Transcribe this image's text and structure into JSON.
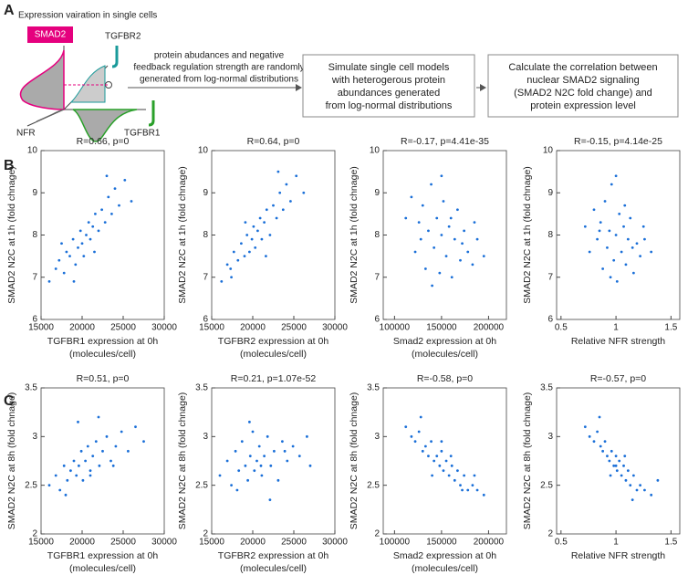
{
  "panel_labels": [
    "A",
    "B",
    "C"
  ],
  "diagram": {
    "caption": "Expression vairation in single cells",
    "smad2": "SMAD2",
    "tgfbr2": "TGFBR2",
    "nfr": "NFR",
    "tgfbr1": "TGFBR1",
    "note": [
      "protein abudances and negative",
      "feedback regulation strength are randomly",
      "generated from log-normal distributions"
    ],
    "box1": [
      "Simulate single cell models",
      "with  heterogerous protein",
      "abundances generated",
      "from log-normal distributions"
    ],
    "box2": [
      "Calculate the correlation between",
      "nuclear SMAD2 signaling",
      "(SMAD2 N2C fold change) and",
      "protein expression level"
    ]
  },
  "chart_data": [
    {
      "type": "scatter",
      "title": "R=0.66, p=0",
      "xlabel": [
        "TGFBR1 expression at 0h",
        "(molecules/cell)"
      ],
      "ylabel": "SMAD2 N2C at 1h (fold chnage)",
      "color": "#1a6fd8",
      "x": [
        16000,
        16800,
        17200,
        17800,
        18100,
        18500,
        18900,
        19200,
        19500,
        19800,
        20000,
        20200,
        20500,
        20800,
        21000,
        21300,
        21600,
        22000,
        22400,
        22800,
        23200,
        23600,
        24000,
        24500,
        25200,
        26000,
        17500,
        19000,
        21500,
        23000
      ],
      "y": [
        6.9,
        7.2,
        7.4,
        7.1,
        7.6,
        7.5,
        7.9,
        7.3,
        7.7,
        8.1,
        7.8,
        7.5,
        8.0,
        8.3,
        7.9,
        8.2,
        8.5,
        8.1,
        8.6,
        8.3,
        8.9,
        8.5,
        9.1,
        8.7,
        9.3,
        8.8,
        7.8,
        6.9,
        7.6,
        9.4
      ],
      "xlim": [
        15000,
        30000
      ],
      "xticks": [
        15000,
        20000,
        25000,
        30000
      ],
      "ylim": [
        6,
        10
      ],
      "yticks": [
        6,
        7,
        8,
        9,
        10
      ]
    },
    {
      "type": "scatter",
      "title": "R=0.64, p=0",
      "xlabel": [
        "TGFBR2 expression at 0h",
        "(molecules/cell)"
      ],
      "ylabel": "SMAD2 N2C at 1h (fold chnage)",
      "color": "#1a6fd8",
      "x": [
        16200,
        16900,
        17300,
        17700,
        18200,
        18600,
        19000,
        19300,
        19600,
        19900,
        20100,
        20300,
        20600,
        20900,
        21100,
        21400,
        21700,
        22100,
        22500,
        22900,
        23300,
        23700,
        24100,
        24600,
        25300,
        26200,
        17400,
        19100,
        21600,
        23100
      ],
      "y": [
        6.9,
        7.3,
        7.2,
        7.6,
        7.4,
        7.8,
        7.5,
        8.0,
        7.6,
        7.9,
        8.2,
        7.7,
        8.1,
        8.4,
        7.9,
        8.3,
        8.6,
        8.0,
        8.7,
        8.4,
        9.0,
        8.6,
        9.2,
        8.8,
        9.4,
        9.0,
        7.0,
        8.3,
        7.5,
        9.5
      ],
      "xlim": [
        15000,
        30000
      ],
      "xticks": [
        15000,
        20000,
        25000,
        30000
      ],
      "ylim": [
        6,
        10
      ],
      "yticks": [
        6,
        7,
        8,
        9,
        10
      ]
    },
    {
      "type": "scatter",
      "title": "R=-0.17, p=4.41e-35",
      "xlabel": [
        "Smad2 expression at 0h",
        "(molecules/cell)"
      ],
      "ylabel": "SMAD2 N2C at 1h (fold chnage)",
      "color": "#1a6fd8",
      "x": [
        112000,
        118000,
        122000,
        126000,
        130000,
        133000,
        136000,
        139000,
        142000,
        145000,
        148000,
        150000,
        152000,
        155000,
        158000,
        161000,
        164000,
        167000,
        170000,
        174000,
        178000,
        183000,
        188000,
        195000,
        128000,
        140000,
        150000,
        160000,
        172000,
        185000
      ],
      "y": [
        8.4,
        8.9,
        7.6,
        8.3,
        8.7,
        7.2,
        8.1,
        9.2,
        7.7,
        8.4,
        7.1,
        8.0,
        8.8,
        7.5,
        8.2,
        7.0,
        7.9,
        8.6,
        7.4,
        8.1,
        7.6,
        7.3,
        7.9,
        7.5,
        7.9,
        6.8,
        9.4,
        8.4,
        7.8,
        8.3
      ],
      "xlim": [
        88000,
        219000
      ],
      "xticks": [
        100000,
        150000,
        200000
      ],
      "ylim": [
        6,
        10
      ],
      "yticks": [
        6,
        7,
        8,
        9,
        10
      ]
    },
    {
      "type": "scatter",
      "title": "R=-0.15, p=4.14e-25",
      "xlabel": [
        "Relative NFR strength"
      ],
      "ylabel": "SMAD2 N2C at 1h (fold chnage)",
      "color": "#1a6fd8",
      "x": [
        0.72,
        0.76,
        0.8,
        0.83,
        0.86,
        0.88,
        0.9,
        0.92,
        0.94,
        0.96,
        0.98,
        1.0,
        1.01,
        1.03,
        1.05,
        1.07,
        1.09,
        1.11,
        1.13,
        1.16,
        1.19,
        1.22,
        1.26,
        1.32,
        0.85,
        0.95,
        1.0,
        1.08,
        1.15,
        1.25
      ],
      "y": [
        8.2,
        7.6,
        8.6,
        7.9,
        8.3,
        7.2,
        8.8,
        7.7,
        8.1,
        9.2,
        7.4,
        8.0,
        6.9,
        8.5,
        7.6,
        8.2,
        7.3,
        7.9,
        8.4,
        7.1,
        7.8,
        7.5,
        7.9,
        7.6,
        8.1,
        7.0,
        9.4,
        8.7,
        7.7,
        8.2
      ],
      "xlim": [
        0.46,
        1.58
      ],
      "xticks": [
        0.5,
        1,
        1.5
      ],
      "ylim": [
        6,
        10
      ],
      "yticks": [
        6,
        7,
        8,
        9,
        10
      ]
    },
    {
      "type": "scatter",
      "title": "R=0.51, p=0",
      "xlabel": [
        "TGFBR1 expression at 0h",
        "(molecules/cell)"
      ],
      "ylabel": "SMAD2 N2C at 8h (fold chnage)",
      "color": "#1a6fd8",
      "x": [
        16000,
        16800,
        17300,
        17800,
        18200,
        18600,
        19000,
        19300,
        19600,
        19900,
        20100,
        20400,
        20700,
        21000,
        21300,
        21700,
        22100,
        22500,
        23000,
        23500,
        24100,
        24800,
        25600,
        26500,
        18000,
        19500,
        21000,
        22000,
        23800,
        27500
      ],
      "y": [
        2.5,
        2.6,
        2.45,
        2.7,
        2.55,
        2.65,
        2.75,
        2.6,
        2.7,
        2.85,
        2.55,
        2.75,
        2.9,
        2.65,
        2.8,
        2.95,
        2.7,
        2.85,
        3.0,
        2.75,
        2.9,
        3.05,
        2.85,
        3.1,
        2.4,
        3.15,
        2.6,
        3.2,
        2.7,
        2.95
      ],
      "xlim": [
        15000,
        30000
      ],
      "xticks": [
        15000,
        20000,
        25000,
        30000
      ],
      "ylim": [
        2,
        3.5
      ],
      "yticks": [
        2,
        2.5,
        3,
        3.5
      ]
    },
    {
      "type": "scatter",
      "title": "R=0.21, p=1.07e-52",
      "xlabel": [
        "TGFBR2 expression at 0h",
        "(molecules/cell)"
      ],
      "ylabel": "SMAD2 N2C at 8h (fold chnage)",
      "color": "#1a6fd8",
      "x": [
        16000,
        16900,
        17400,
        17900,
        18300,
        18700,
        19100,
        19400,
        19700,
        20000,
        20200,
        20500,
        20800,
        21100,
        21400,
        21800,
        22200,
        22600,
        23100,
        23600,
        24200,
        24900,
        25700,
        26600,
        18100,
        19600,
        21000,
        22100,
        23900,
        27000
      ],
      "y": [
        2.6,
        2.75,
        2.5,
        2.85,
        2.65,
        2.95,
        2.7,
        2.55,
        2.8,
        3.05,
        2.65,
        2.75,
        2.9,
        2.6,
        2.8,
        3.0,
        2.7,
        2.85,
        2.55,
        2.95,
        2.75,
        2.9,
        2.8,
        3.0,
        2.45,
        3.15,
        2.7,
        2.35,
        2.85,
        2.7
      ],
      "xlim": [
        15000,
        30000
      ],
      "xticks": [
        15000,
        20000,
        25000,
        30000
      ],
      "ylim": [
        2,
        3.5
      ],
      "yticks": [
        2,
        2.5,
        3,
        3.5
      ]
    },
    {
      "type": "scatter",
      "title": "R=-0.58, p=0",
      "xlabel": [
        "Smad2 expression at 0h",
        "(molecules/cell)"
      ],
      "ylabel": "SMAD2 N2C at 8h (fold chnage)",
      "color": "#1a6fd8",
      "x": [
        112000,
        118000,
        122000,
        126000,
        130000,
        133000,
        136000,
        139000,
        142000,
        145000,
        148000,
        150000,
        152000,
        155000,
        158000,
        161000,
        164000,
        167000,
        170000,
        174000,
        178000,
        183000,
        188000,
        195000,
        128000,
        140000,
        150000,
        160000,
        172000,
        185000
      ],
      "y": [
        3.1,
        3.0,
        2.95,
        3.05,
        2.85,
        2.9,
        2.8,
        2.95,
        2.75,
        2.8,
        2.7,
        2.85,
        2.65,
        2.75,
        2.6,
        2.7,
        2.55,
        2.65,
        2.5,
        2.6,
        2.45,
        2.5,
        2.45,
        2.4,
        3.2,
        2.6,
        2.95,
        2.8,
        2.45,
        2.6
      ],
      "xlim": [
        88000,
        219000
      ],
      "xticks": [
        100000,
        150000,
        200000
      ],
      "ylim": [
        2,
        3.5
      ],
      "yticks": [
        2,
        2.5,
        3,
        3.5
      ]
    },
    {
      "type": "scatter",
      "title": "R=-0.57, p=0",
      "xlabel": [
        "Relative NFR strength"
      ],
      "ylabel": "SMAD2 N2C at 8h (fold chnage)",
      "color": "#1a6fd8",
      "x": [
        0.72,
        0.76,
        0.8,
        0.83,
        0.86,
        0.88,
        0.9,
        0.92,
        0.94,
        0.96,
        0.98,
        1.0,
        1.01,
        1.03,
        1.05,
        1.07,
        1.09,
        1.11,
        1.13,
        1.16,
        1.19,
        1.22,
        1.26,
        1.32,
        0.85,
        0.95,
        1.0,
        1.08,
        1.15,
        1.38
      ],
      "y": [
        3.1,
        3.0,
        2.95,
        3.05,
        2.9,
        2.85,
        2.95,
        2.8,
        2.75,
        2.85,
        2.7,
        2.8,
        2.65,
        2.75,
        2.6,
        2.7,
        2.55,
        2.65,
        2.5,
        2.6,
        2.45,
        2.5,
        2.45,
        2.4,
        3.2,
        2.6,
        2.7,
        2.8,
        2.35,
        2.55
      ],
      "xlim": [
        0.46,
        1.58
      ],
      "xticks": [
        0.5,
        1,
        1.5
      ],
      "ylim": [
        2,
        3.5
      ],
      "yticks": [
        2,
        2.5,
        3,
        3.5
      ]
    }
  ]
}
